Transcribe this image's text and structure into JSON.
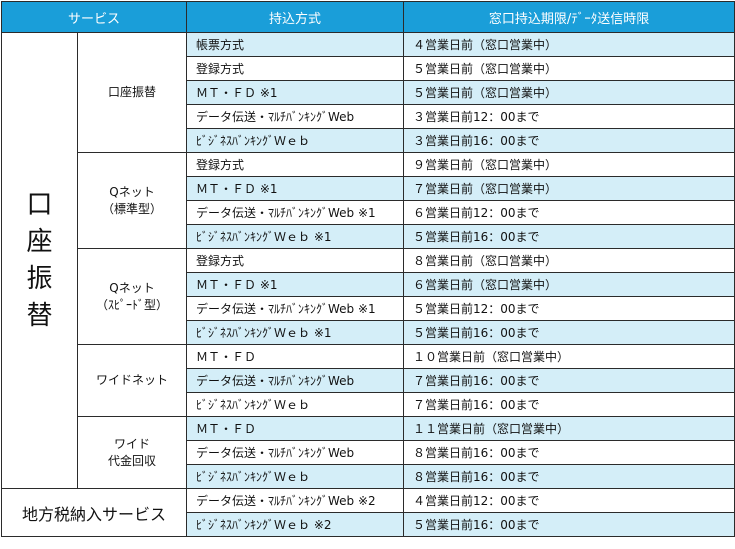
{
  "header": {
    "service": "サービス",
    "method": "持込方式",
    "deadline": "窓口持込期限/ﾃﾞｰﾀ送信時限"
  },
  "groups": [
    {
      "main_chars": [
        "口",
        "座",
        "振",
        "替"
      ],
      "subgroups": [
        {
          "label": [
            "口座振替"
          ],
          "rows": [
            {
              "method": "帳票方式",
              "deadline": "４営業日前（窓口営業中）"
            },
            {
              "method": "登録方式",
              "deadline": "５営業日前（窓口営業中）"
            },
            {
              "method": "ＭＴ・ＦＤ ※1",
              "deadline": "５営業日前（窓口営業中）"
            },
            {
              "method": "データ伝送・ﾏﾙﾁﾊﾞﾝｷﾝｸﾞWeb",
              "deadline": "３営業日前12：00まで"
            },
            {
              "method": "ﾋﾞｼﾞﾈｽﾊﾞﾝｷﾝｸﾞＷｅｂ",
              "deadline": "３営業日前16：00まで"
            }
          ]
        },
        {
          "label": [
            "Qネット",
            "（標準型）"
          ],
          "rows": [
            {
              "method": "登録方式",
              "deadline": "９営業日前（窓口営業中）"
            },
            {
              "method": "ＭＴ・ＦＤ ※1",
              "deadline": "７営業日前（窓口営業中）"
            },
            {
              "method": "データ伝送・ﾏﾙﾁﾊﾞﾝｷﾝｸﾞWeb ※1",
              "deadline": "６営業日前12：00まで"
            },
            {
              "method": "ﾋﾞｼﾞﾈｽﾊﾞﾝｷﾝｸﾞＷｅｂ ※1",
              "deadline": "５営業日前16：00まで"
            }
          ]
        },
        {
          "label": [
            "Qネット",
            "（ｽﾋﾟｰﾄﾞ型）"
          ],
          "rows": [
            {
              "method": "登録方式",
              "deadline": "８営業日前（窓口営業中）"
            },
            {
              "method": "ＭＴ・ＦＤ ※1",
              "deadline": "６営業日前（窓口営業中）"
            },
            {
              "method": "データ伝送・ﾏﾙﾁﾊﾞﾝｷﾝｸﾞWeb ※1",
              "deadline": "５営業日前12：00まで"
            },
            {
              "method": "ﾋﾞｼﾞﾈｽﾊﾞﾝｷﾝｸﾞＷｅｂ ※1",
              "deadline": "５営業日前16：00まで"
            }
          ]
        },
        {
          "label": [
            "ワイドネット"
          ],
          "rows": [
            {
              "method": "ＭＴ・ＦＤ",
              "deadline": "１０営業日前（窓口営業中）"
            },
            {
              "method": "データ伝送・ﾏﾙﾁﾊﾞﾝｷﾝｸﾞWeb",
              "deadline": "７営業日前16：00まで"
            },
            {
              "method": "ﾋﾞｼﾞﾈｽﾊﾞﾝｷﾝｸﾞＷｅｂ",
              "deadline": "７営業日前16：00まで"
            }
          ]
        },
        {
          "label": [
            "ワイド",
            "代金回収"
          ],
          "rows": [
            {
              "method": "ＭＴ・ＦＤ",
              "deadline": "１１営業日前（窓口営業中）"
            },
            {
              "method": "データ伝送・ﾏﾙﾁﾊﾞﾝｷﾝｸﾞWeb",
              "deadline": "８営業日前16：00まで"
            },
            {
              "method": "ﾋﾞｼﾞﾈｽﾊﾞﾝｷﾝｸﾞＷｅｂ",
              "deadline": "８営業日前16：00まで"
            }
          ]
        }
      ]
    }
  ],
  "region": {
    "label": "地方税納入サービス",
    "rows": [
      {
        "method": "データ伝送・ﾏﾙﾁﾊﾞﾝｷﾝｸﾞWeb ※2",
        "deadline": "４営業日前12：00まで"
      },
      {
        "method": "ﾋﾞｼﾞﾈｽﾊﾞﾝｷﾝｸﾞＷｅｂ ※2",
        "deadline": "５営業日前16：00まで"
      }
    ]
  }
}
